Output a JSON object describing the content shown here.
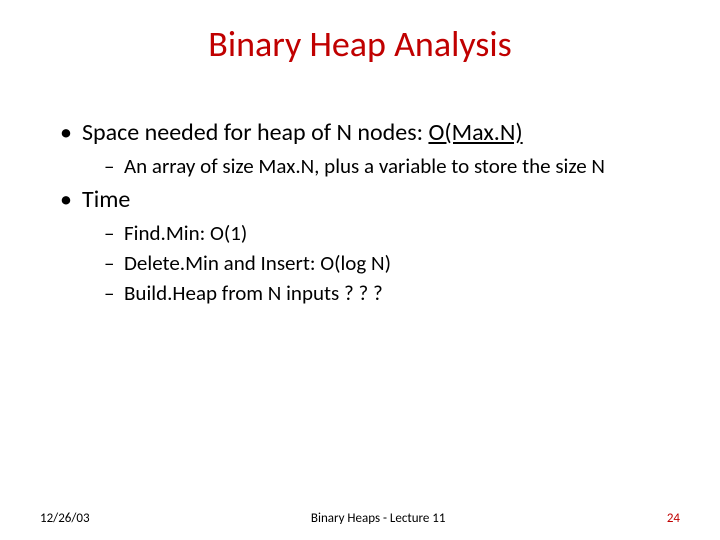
{
  "title": {
    "text": "Binary Heap Analysis",
    "color": "#c00000",
    "fontsize": 36
  },
  "bullets": [
    {
      "prefix": "Space needed for heap of N nodes: ",
      "underlined": "O(Max.N)",
      "sub": [
        "An array of size Max.N, plus a variable to store the size N"
      ]
    },
    {
      "prefix": "Time",
      "underlined": "",
      "sub": [
        "Find.Min: O(1)",
        "Delete.Min and Insert: O(log N)",
        "Build.Heap from N inputs ? ? ?"
      ]
    }
  ],
  "typography": {
    "body_color": "#000000",
    "level1_fontsize": 24,
    "level2_fontsize": 21,
    "footer_fontsize": 13
  },
  "footer": {
    "date": "12/26/03",
    "center": "Binary Heaps - Lecture 11",
    "pagenum": "24",
    "date_color": "#000000",
    "center_color": "#000000",
    "pagenum_color": "#c00000"
  },
  "background_color": "#ffffff"
}
